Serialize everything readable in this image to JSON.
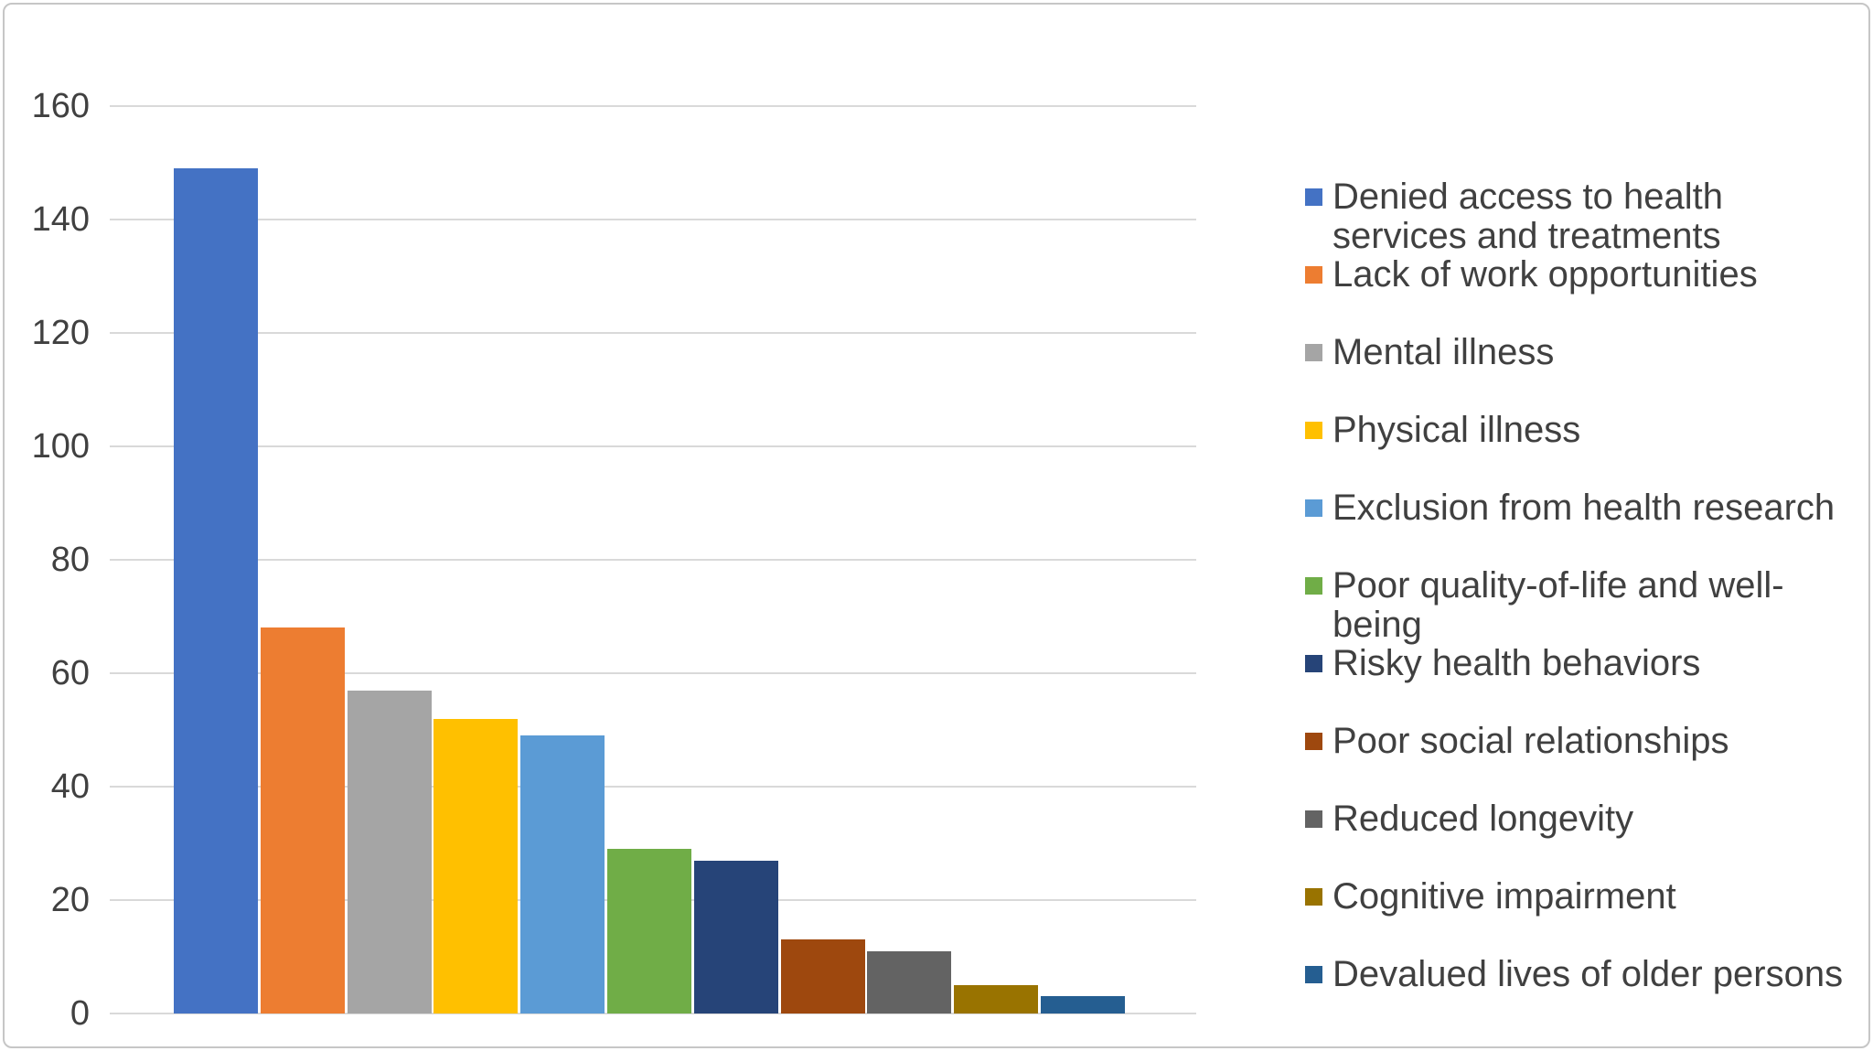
{
  "figure": {
    "background_color": "#ffffff",
    "border_color": "#c6c6c6",
    "text_color": "#404040",
    "gridline_color": "#d9d9d9"
  },
  "chart_data": {
    "type": "bar",
    "title": "",
    "xlabel": "",
    "ylabel": "",
    "categories": [
      "Denied access to health services and treatments",
      "Lack of work opportunities",
      "Mental illness",
      "Physical illness",
      "Exclusion from health research",
      "Poor quality-of-life and well-being",
      "Risky health behaviors",
      "Poor social relationships",
      "Reduced longevity",
      "Cognitive impairment",
      "Devalued lives of older persons"
    ],
    "values": [
      149,
      68,
      57,
      52,
      49,
      29,
      27,
      13,
      11,
      5,
      3
    ],
    "colors": [
      "#4472C4",
      "#ED7D31",
      "#A5A5A5",
      "#FFC000",
      "#5B9BD5",
      "#70AD47",
      "#264478",
      "#9E480E",
      "#636363",
      "#997300",
      "#255E91"
    ],
    "ylim": [
      0,
      160
    ],
    "yticks": [
      "0",
      "20",
      "40",
      "60",
      "80",
      "100",
      "120",
      "140",
      "160"
    ],
    "grid": true,
    "x_axis_labels_shown": false,
    "legend_position": "right"
  }
}
